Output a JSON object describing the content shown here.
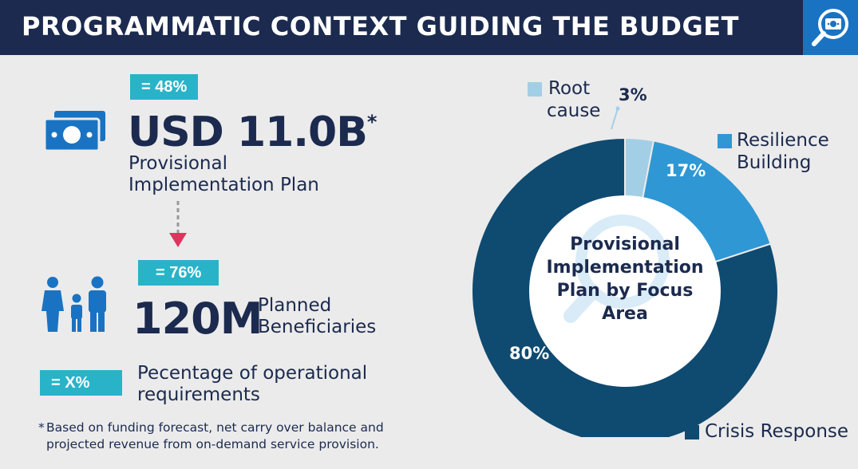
{
  "header": {
    "title": "PROGRAMMATIC CONTEXT GUIDING THE BUDGET",
    "icon": "magnifier-money-icon"
  },
  "metrics": {
    "funding": {
      "badge": "= 48%",
      "value": "USD 11.0B",
      "asterisk": "*",
      "label_line1": "Provisional",
      "label_line2": "Implementation Plan",
      "icon": "money-icon"
    },
    "beneficiaries": {
      "badge": "= 76%",
      "value": "120M",
      "label_line1": "Planned",
      "label_line2": "Beneficiaries",
      "icon": "family-icon"
    },
    "operational": {
      "badge": "= X%",
      "label_line1": "Pecentage of operational",
      "label_line2": "requirements"
    }
  },
  "footnote": {
    "marker": "*",
    "line1": "Based on funding forecast, net carry over balance and",
    "line2": "projected revenue from on-demand service provision."
  },
  "colors": {
    "navy": "#1b2a4e",
    "accent_teal": "#29b3c9",
    "header_blue": "#1a73c2",
    "arrow_pink": "#e0345f"
  },
  "chart_data": {
    "type": "pie",
    "style": "donut",
    "title_line1": "Provisional",
    "title_line2": "Implementation",
    "title_line3": "Plan by Focus",
    "title_line4": "Area",
    "slices": [
      {
        "name": "Root cause",
        "legend_line1": "Root",
        "legend_line2": "cause",
        "value": 3,
        "label": "3%",
        "color": "#a3cfe6"
      },
      {
        "name": "Resilience Building",
        "legend_line1": "Resilience",
        "legend_line2": "Building",
        "value": 17,
        "label": "17%",
        "color": "#2f97d4"
      },
      {
        "name": "Crisis Response",
        "legend_line1": "Crisis Response",
        "legend_line2": "",
        "value": 80,
        "label": "80%",
        "color": "#0f4a71"
      }
    ]
  }
}
